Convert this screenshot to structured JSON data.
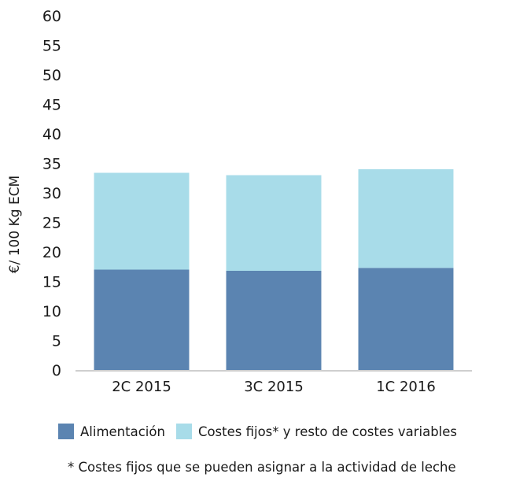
{
  "chart_data": {
    "type": "bar",
    "stacked": true,
    "categories": [
      "2C 2015",
      "3C 2015",
      "1C 2016"
    ],
    "series": [
      {
        "name": "Alimentación",
        "values": [
          17.0,
          16.8,
          17.3
        ],
        "color": "#5b84b1"
      },
      {
        "name": "Costes fijos* y resto de costes variables",
        "values": [
          16.4,
          16.2,
          16.7
        ],
        "color": "#a8dce9"
      }
    ],
    "ylabel": "€/ 100 Kg ECM",
    "ylim": [
      0,
      60
    ],
    "yticks": [
      "0",
      "5",
      "10",
      "15",
      "20",
      "25",
      "30",
      "35",
      "40",
      "45",
      "50",
      "55",
      "60"
    ],
    "grid": false,
    "legend_position": "bottom",
    "footnote": "* Costes fijos que se pueden asignar a la actividad de leche"
  }
}
